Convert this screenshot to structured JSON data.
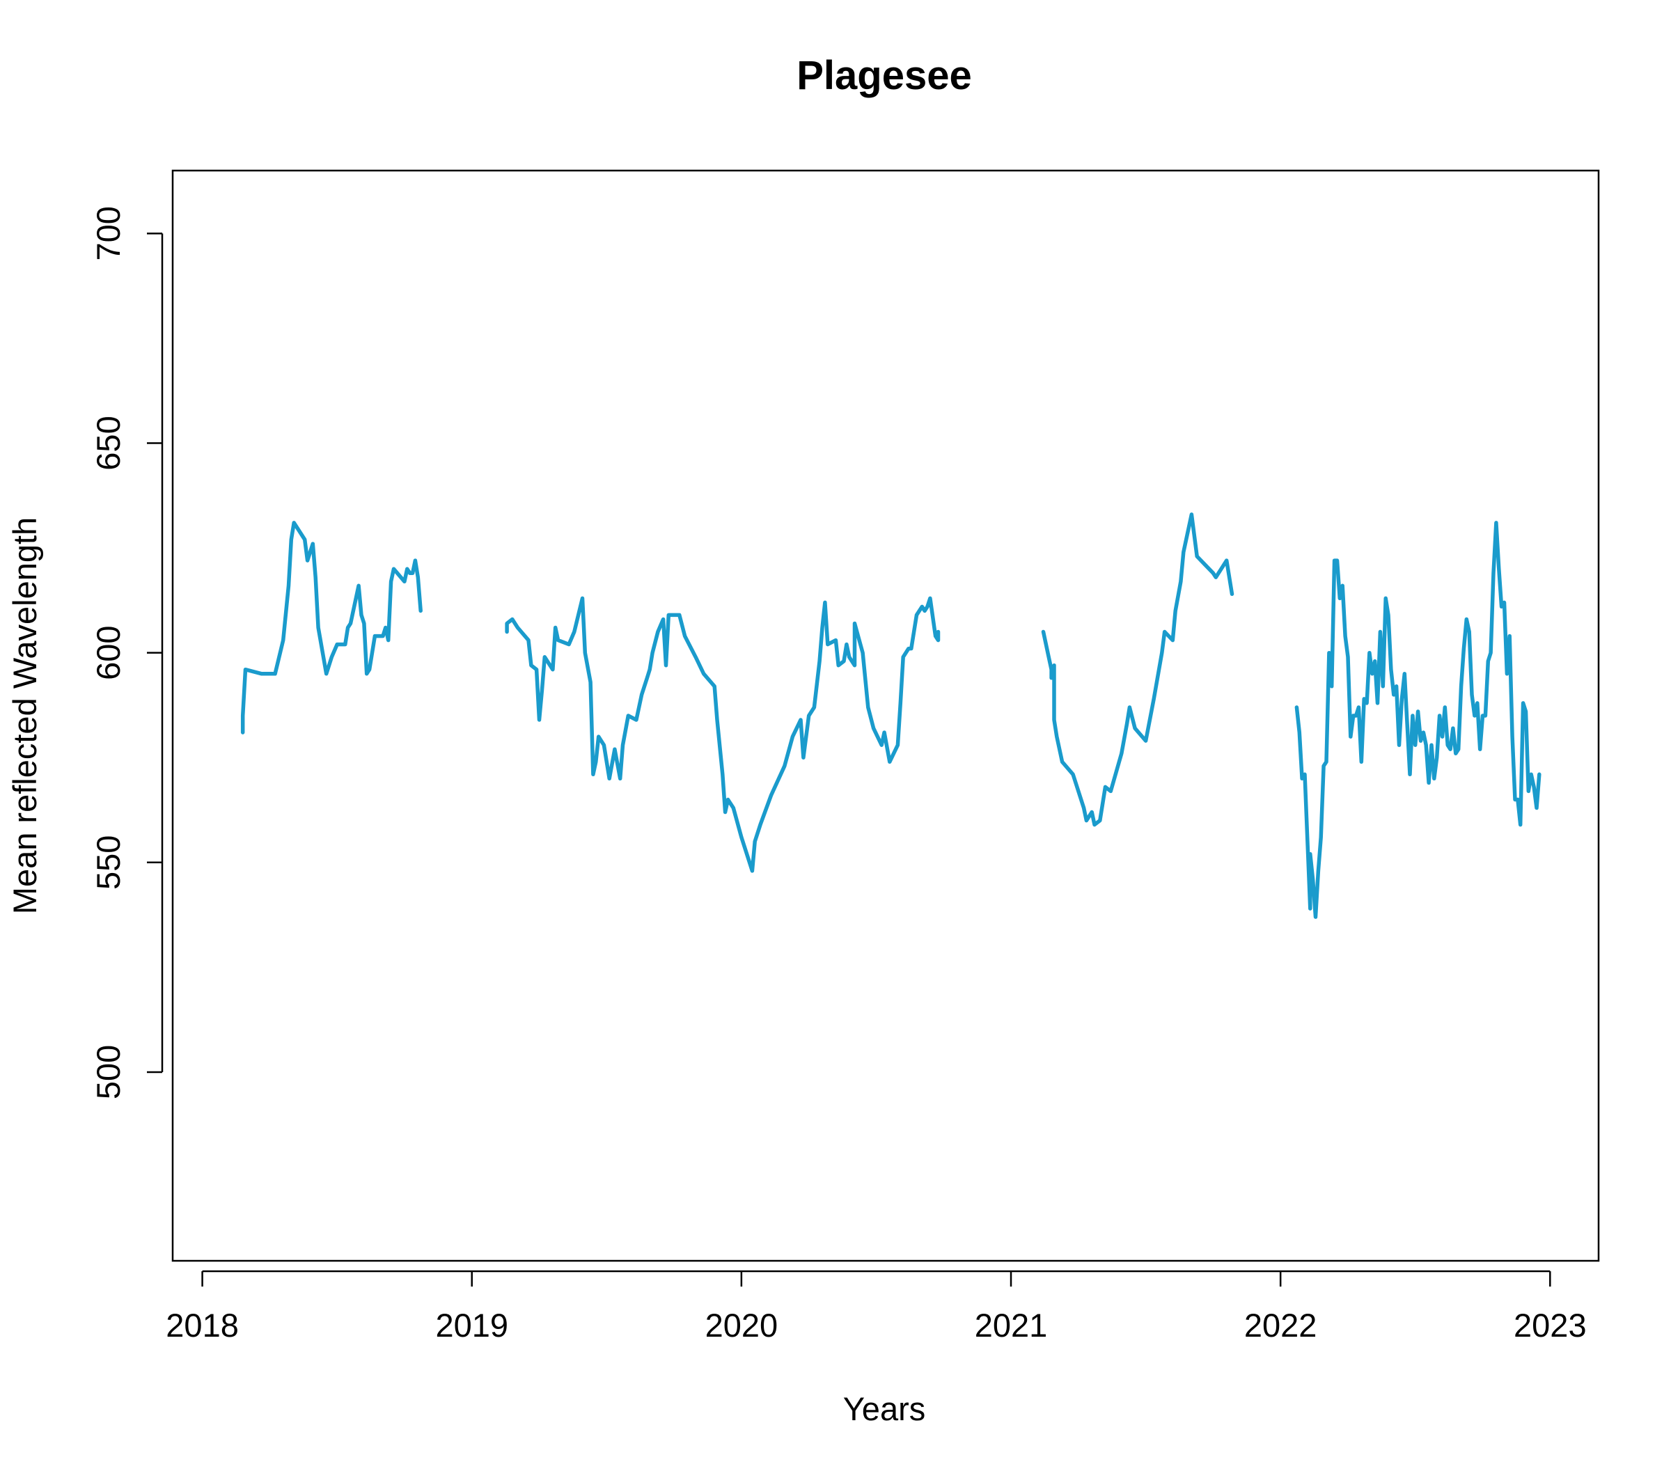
{
  "chart_data": {
    "type": "line",
    "title": "Plagesee",
    "xlabel": "Years",
    "ylabel": "Mean reflected Wavelength",
    "xlim": [
      2017.89,
      2023.18
    ],
    "ylim": [
      455,
      715
    ],
    "x_ticks": [
      "2018",
      "2019",
      "2020",
      "2021",
      "2022",
      "2023"
    ],
    "y_ticks": [
      "500",
      "550",
      "600",
      "650",
      "700"
    ],
    "grid": false,
    "legend": "none",
    "line_color": "#1a9bcc",
    "series": [
      {
        "segments": [
          [
            [
              2018.15,
              581
            ],
            [
              2018.15,
              585
            ],
            [
              2018.16,
              596
            ],
            [
              2018.22,
              595
            ],
            [
              2018.27,
              595
            ],
            [
              2018.3,
              603
            ],
            [
              2018.32,
              616
            ],
            [
              2018.33,
              627
            ],
            [
              2018.34,
              631
            ],
            [
              2018.36,
              629
            ],
            [
              2018.38,
              627
            ],
            [
              2018.39,
              622
            ],
            [
              2018.41,
              626
            ],
            [
              2018.42,
              618
            ],
            [
              2018.43,
              606
            ],
            [
              2018.46,
              595
            ],
            [
              2018.48,
              599
            ],
            [
              2018.5,
              602
            ],
            [
              2018.53,
              602
            ],
            [
              2018.54,
              606
            ],
            [
              2018.55,
              607
            ],
            [
              2018.58,
              616
            ],
            [
              2018.59,
              609
            ],
            [
              2018.6,
              607
            ],
            [
              2018.61,
              595
            ],
            [
              2018.62,
              596
            ],
            [
              2018.64,
              604
            ],
            [
              2018.67,
              604
            ],
            [
              2018.68,
              606
            ],
            [
              2018.69,
              603
            ],
            [
              2018.7,
              617
            ],
            [
              2018.71,
              620
            ],
            [
              2018.75,
              617
            ],
            [
              2018.76,
              620
            ],
            [
              2018.77,
              619
            ],
            [
              2018.78,
              619
            ],
            [
              2018.79,
              622
            ],
            [
              2018.8,
              618
            ],
            [
              2018.81,
              610
            ]
          ],
          [
            [
              2019.13,
              605
            ],
            [
              2019.13,
              607
            ],
            [
              2019.15,
              608
            ],
            [
              2019.17,
              606
            ],
            [
              2019.21,
              603
            ],
            [
              2019.22,
              597
            ],
            [
              2019.24,
              596
            ],
            [
              2019.25,
              584
            ],
            [
              2019.26,
              591
            ],
            [
              2019.27,
              599
            ],
            [
              2019.3,
              596
            ],
            [
              2019.31,
              606
            ],
            [
              2019.32,
              603
            ],
            [
              2019.36,
              602
            ],
            [
              2019.38,
              605
            ],
            [
              2019.41,
              613
            ],
            [
              2019.42,
              600
            ],
            [
              2019.44,
              593
            ],
            [
              2019.45,
              571
            ],
            [
              2019.46,
              574
            ],
            [
              2019.47,
              580
            ],
            [
              2019.49,
              578
            ],
            [
              2019.51,
              570
            ],
            [
              2019.53,
              577
            ],
            [
              2019.55,
              570
            ],
            [
              2019.56,
              578
            ],
            [
              2019.58,
              585
            ],
            [
              2019.61,
              584
            ],
            [
              2019.63,
              590
            ],
            [
              2019.65,
              594
            ],
            [
              2019.66,
              596
            ],
            [
              2019.67,
              600
            ],
            [
              2019.69,
              605
            ],
            [
              2019.71,
              608
            ],
            [
              2019.72,
              597
            ],
            [
              2019.73,
              609
            ],
            [
              2019.77,
              609
            ],
            [
              2019.79,
              604
            ],
            [
              2019.83,
              599
            ],
            [
              2019.86,
              595
            ],
            [
              2019.9,
              592
            ],
            [
              2019.91,
              584
            ],
            [
              2019.93,
              571
            ],
            [
              2019.94,
              562
            ],
            [
              2019.95,
              565
            ],
            [
              2019.97,
              563
            ],
            [
              2020.0,
              556
            ],
            [
              2020.04,
              548
            ],
            [
              2020.05,
              555
            ],
            [
              2020.07,
              559
            ],
            [
              2020.11,
              566
            ],
            [
              2020.16,
              573
            ],
            [
              2020.19,
              580
            ],
            [
              2020.22,
              584
            ],
            [
              2020.23,
              575
            ],
            [
              2020.25,
              585
            ],
            [
              2020.27,
              587
            ],
            [
              2020.29,
              598
            ],
            [
              2020.3,
              606
            ],
            [
              2020.31,
              612
            ],
            [
              2020.32,
              602
            ],
            [
              2020.35,
              603
            ],
            [
              2020.36,
              597
            ],
            [
              2020.38,
              598
            ],
            [
              2020.39,
              602
            ],
            [
              2020.4,
              599
            ],
            [
              2020.42,
              597
            ],
            [
              2020.42,
              607
            ],
            [
              2020.45,
              600
            ],
            [
              2020.47,
              587
            ],
            [
              2020.49,
              582
            ],
            [
              2020.52,
              578
            ],
            [
              2020.53,
              581
            ],
            [
              2020.55,
              574
            ],
            [
              2020.58,
              578
            ],
            [
              2020.59,
              588
            ],
            [
              2020.6,
              599
            ],
            [
              2020.62,
              601
            ],
            [
              2020.63,
              601
            ],
            [
              2020.65,
              609
            ],
            [
              2020.67,
              611
            ],
            [
              2020.68,
              610
            ],
            [
              2020.69,
              611
            ],
            [
              2020.7,
              613
            ],
            [
              2020.72,
              604
            ],
            [
              2020.73,
              603
            ],
            [
              2020.73,
              605
            ]
          ],
          [
            [
              2021.12,
              605
            ],
            [
              2021.14,
              599
            ],
            [
              2021.15,
              596
            ],
            [
              2021.15,
              594
            ],
            [
              2021.16,
              597
            ],
            [
              2021.16,
              584
            ],
            [
              2021.17,
              580
            ],
            [
              2021.19,
              574
            ],
            [
              2021.23,
              571
            ],
            [
              2021.27,
              563
            ],
            [
              2021.28,
              560
            ],
            [
              2021.3,
              562
            ],
            [
              2021.31,
              559
            ],
            [
              2021.33,
              560
            ],
            [
              2021.35,
              568
            ],
            [
              2021.37,
              567
            ],
            [
              2021.41,
              576
            ],
            [
              2021.43,
              583
            ],
            [
              2021.44,
              587
            ],
            [
              2021.46,
              582
            ],
            [
              2021.5,
              579
            ],
            [
              2021.53,
              589
            ],
            [
              2021.56,
              600
            ],
            [
              2021.57,
              605
            ],
            [
              2021.6,
              603
            ],
            [
              2021.61,
              610
            ],
            [
              2021.63,
              617
            ],
            [
              2021.64,
              624
            ],
            [
              2021.67,
              633
            ],
            [
              2021.69,
              623
            ],
            [
              2021.72,
              621
            ],
            [
              2021.75,
              619
            ],
            [
              2021.76,
              618
            ],
            [
              2021.8,
              622
            ],
            [
              2021.82,
              614
            ]
          ]
        ]
      },
      {
        "segments": [
          [
            [
              2022.06,
              587
            ],
            [
              2022.07,
              581
            ],
            [
              2022.08,
              570
            ],
            [
              2022.09,
              571
            ],
            [
              2022.1,
              555
            ],
            [
              2022.11,
              539
            ],
            [
              2022.11,
              552
            ],
            [
              2022.12,
              546
            ],
            [
              2022.13,
              537
            ],
            [
              2022.14,
              548
            ],
            [
              2022.15,
              556
            ],
            [
              2022.16,
              573
            ],
            [
              2022.17,
              574
            ],
            [
              2022.18,
              600
            ],
            [
              2022.19,
              592
            ],
            [
              2022.2,
              622
            ],
            [
              2022.21,
              622
            ],
            [
              2022.22,
              613
            ],
            [
              2022.23,
              616
            ],
            [
              2022.24,
              604
            ],
            [
              2022.25,
              599
            ],
            [
              2022.26,
              580
            ],
            [
              2022.27,
              585
            ],
            [
              2022.28,
              585
            ],
            [
              2022.29,
              587
            ],
            [
              2022.3,
              574
            ],
            [
              2022.31,
              589
            ],
            [
              2022.32,
              588
            ],
            [
              2022.33,
              600
            ],
            [
              2022.34,
              595
            ],
            [
              2022.35,
              598
            ],
            [
              2022.36,
              588
            ],
            [
              2022.37,
              605
            ],
            [
              2022.38,
              592
            ],
            [
              2022.39,
              613
            ],
            [
              2022.4,
              609
            ],
            [
              2022.41,
              596
            ],
            [
              2022.42,
              590
            ],
            [
              2022.43,
              592
            ],
            [
              2022.44,
              578
            ],
            [
              2022.45,
              589
            ],
            [
              2022.46,
              595
            ],
            [
              2022.47,
              583
            ],
            [
              2022.48,
              571
            ],
            [
              2022.49,
              585
            ],
            [
              2022.5,
              578
            ],
            [
              2022.51,
              586
            ],
            [
              2022.52,
              579
            ],
            [
              2022.53,
              581
            ],
            [
              2022.54,
              578
            ],
            [
              2022.55,
              569
            ],
            [
              2022.56,
              578
            ],
            [
              2022.57,
              570
            ],
            [
              2022.58,
              575
            ],
            [
              2022.59,
              585
            ],
            [
              2022.6,
              580
            ],
            [
              2022.61,
              587
            ],
            [
              2022.62,
              578
            ],
            [
              2022.63,
              577
            ],
            [
              2022.64,
              582
            ],
            [
              2022.65,
              576
            ],
            [
              2022.66,
              577
            ],
            [
              2022.67,
              592
            ],
            [
              2022.68,
              601
            ],
            [
              2022.69,
              608
            ],
            [
              2022.7,
              605
            ],
            [
              2022.71,
              590
            ],
            [
              2022.72,
              585
            ],
            [
              2022.73,
              588
            ],
            [
              2022.74,
              577
            ],
            [
              2022.75,
              585
            ],
            [
              2022.76,
              585
            ],
            [
              2022.77,
              598
            ],
            [
              2022.78,
              600
            ],
            [
              2022.79,
              619
            ],
            [
              2022.8,
              631
            ],
            [
              2022.81,
              620
            ],
            [
              2022.82,
              611
            ],
            [
              2022.83,
              612
            ],
            [
              2022.84,
              595
            ],
            [
              2022.85,
              604
            ],
            [
              2022.86,
              580
            ],
            [
              2022.87,
              565
            ],
            [
              2022.88,
              565
            ],
            [
              2022.89,
              559
            ],
            [
              2022.9,
              588
            ],
            [
              2022.91,
              586
            ],
            [
              2022.92,
              567
            ],
            [
              2022.93,
              571
            ],
            [
              2022.94,
              568
            ],
            [
              2022.95,
              563
            ],
            [
              2022.96,
              571
            ]
          ]
        ]
      }
    ]
  }
}
